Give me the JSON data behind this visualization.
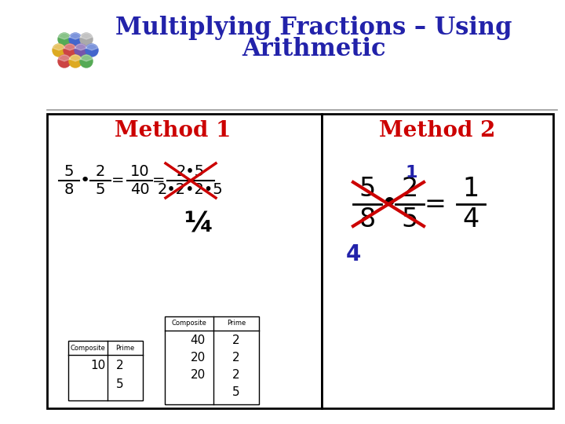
{
  "title_line1": "Multiplying Fractions – Using",
  "title_line2": "Arithmetic",
  "title_color": "#2222aa",
  "title_fontsize": 22,
  "bg_color": "#ffffff",
  "method1_label": "Method 1",
  "method2_label": "Method 2",
  "method_label_color": "#cc0000",
  "method_label_fontsize": 20,
  "panel_border_color": "#000000",
  "blue_color": "#2222aa",
  "red_color": "#cc0000",
  "black_color": "#000000",
  "gray_line_color": "#999999"
}
